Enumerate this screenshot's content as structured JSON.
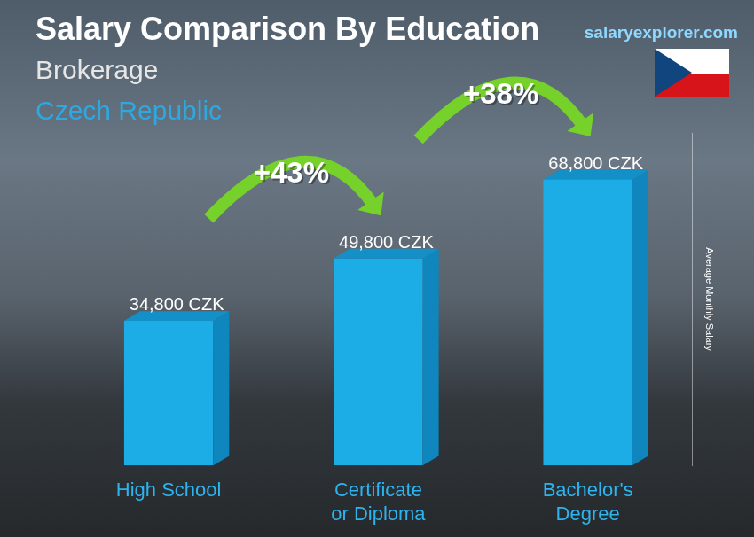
{
  "chart_data": {
    "type": "bar",
    "title": "Salary Comparison By Education",
    "subtitle": [
      "Brokerage",
      "Czech Republic"
    ],
    "source": "salaryexplorer.com",
    "y_label": "Average Monthly Salary",
    "categories": [
      "High School",
      "Certificate or Diploma",
      "Bachelor's Degree"
    ],
    "values": [
      34800,
      49800,
      68800
    ],
    "value_labels": [
      "34,800 CZK",
      "49,800 CZK",
      "68,800 CZK"
    ],
    "data_labels": true,
    "color": "#1cace6",
    "ylim": [
      0,
      80000
    ],
    "tick_labels": "x",
    "grid": false,
    "annotations": [
      "+43%",
      "+38%"
    ]
  }
}
